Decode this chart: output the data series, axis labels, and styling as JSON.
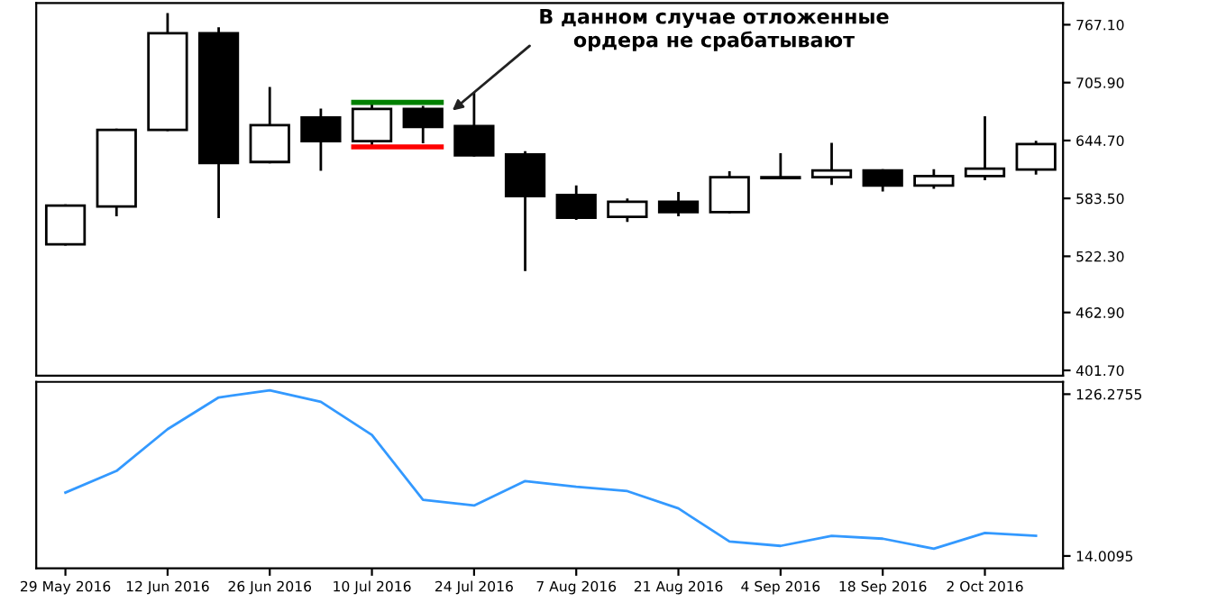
{
  "chart_data": [
    {
      "type": "candlestick",
      "x": [
        "2016-05-29",
        "2016-06-05",
        "2016-06-12",
        "2016-06-19",
        "2016-06-26",
        "2016-07-03",
        "2016-07-10",
        "2016-07-17",
        "2016-07-24",
        "2016-07-31",
        "2016-08-07",
        "2016-08-14",
        "2016-08-21",
        "2016-08-28",
        "2016-09-04",
        "2016-09-11",
        "2016-09-18",
        "2016-09-25",
        "2016-10-02",
        "2016-10-09"
      ],
      "ohlc": [
        [
          535,
          576,
          535,
          576
        ],
        [
          575,
          656,
          566,
          656
        ],
        [
          656,
          778,
          656,
          758
        ],
        [
          758,
          763,
          564,
          621
        ],
        [
          622,
          700,
          622,
          661
        ],
        [
          669,
          677,
          614,
          644
        ],
        [
          644,
          683,
          640,
          678
        ],
        [
          678,
          680,
          643,
          659
        ],
        [
          660,
          694,
          629,
          629
        ],
        [
          630,
          632,
          508,
          586
        ],
        [
          587,
          596,
          562,
          563
        ],
        [
          564,
          582,
          560,
          580
        ],
        [
          580,
          589,
          566,
          569
        ],
        [
          569,
          611,
          569,
          606
        ],
        [
          605,
          630,
          605,
          606
        ],
        [
          606,
          641,
          599,
          613
        ],
        [
          613,
          613,
          592,
          597
        ],
        [
          597,
          613,
          595,
          607
        ],
        [
          607,
          669,
          604,
          615
        ],
        [
          614,
          643,
          610,
          641
        ]
      ],
      "series": [
        {
          "type": "line",
          "color": "#008000",
          "x": [
            "2016-07-07T12:00",
            "2016-07-19T12:00"
          ],
          "values": [
            685,
            685
          ]
        },
        {
          "type": "line",
          "color": "#ff0000",
          "x": [
            "2016-07-07T12:00",
            "2016-07-19T12:00"
          ],
          "values": [
            638,
            638
          ]
        }
      ],
      "annotations": [
        {
          "text": "В данном случае отложенные\nордера не срабатывают",
          "x": "2016-07-20T12:00",
          "y": 673
        }
      ],
      "xlim": [
        "2016-05-25",
        "2016-10-12T17:00"
      ],
      "ylim": [
        396,
        790
      ],
      "yticks": [
        {
          "value": 767.1,
          "label": "767.10"
        },
        {
          "value": 705.9,
          "label": "705.90"
        },
        {
          "value": 644.7,
          "label": "644.70"
        },
        {
          "value": 583.5,
          "label": "583.50"
        },
        {
          "value": 522.3,
          "label": "522.30"
        },
        {
          "value": 462.9,
          "label": "462.90"
        },
        {
          "value": 401.7,
          "label": "401.70"
        }
      ],
      "tick_labels": "y"
    },
    {
      "type": "line",
      "x": [
        "2016-05-29",
        "2016-06-05",
        "2016-06-12",
        "2016-06-19",
        "2016-06-26",
        "2016-07-03",
        "2016-07-10",
        "2016-07-17",
        "2016-07-24",
        "2016-07-31",
        "2016-08-07",
        "2016-08-14",
        "2016-08-21",
        "2016-08-28",
        "2016-09-04",
        "2016-09-11",
        "2016-09-18",
        "2016-09-25",
        "2016-10-02",
        "2016-10-09"
      ],
      "series": [
        {
          "color": "#3399ff",
          "values": [
            58,
            73,
            102,
            124,
            129,
            121,
            98,
            53,
            49,
            66,
            62,
            59,
            47,
            24,
            21,
            28,
            26,
            19,
            30,
            28
          ]
        }
      ],
      "xlim": [
        "2016-05-25",
        "2016-10-12T17:00"
      ],
      "ylim": [
        5.5,
        134.8
      ],
      "yticks": [
        126.2755,
        14.0095
      ],
      "xticks": [
        {
          "value": "2016-05-29",
          "label": "29 May 2016"
        },
        {
          "value": "2016-06-12",
          "label": "12 Jun 2016"
        },
        {
          "value": "2016-06-26",
          "label": "26 Jun 2016"
        },
        {
          "value": "2016-07-10",
          "label": "10 Jul 2016"
        },
        {
          "value": "2016-07-24",
          "label": "24 Jul 2016"
        },
        {
          "value": "2016-08-07",
          "label": "7 Aug 2016"
        },
        {
          "value": "2016-08-21",
          "label": "21 Aug 2016"
        },
        {
          "value": "2016-09-04",
          "label": "4 Sep 2016"
        },
        {
          "value": "2016-09-18",
          "label": "18 Sep 2016"
        },
        {
          "value": "2016-10-02",
          "label": "2 Oct 2016"
        }
      ]
    }
  ]
}
